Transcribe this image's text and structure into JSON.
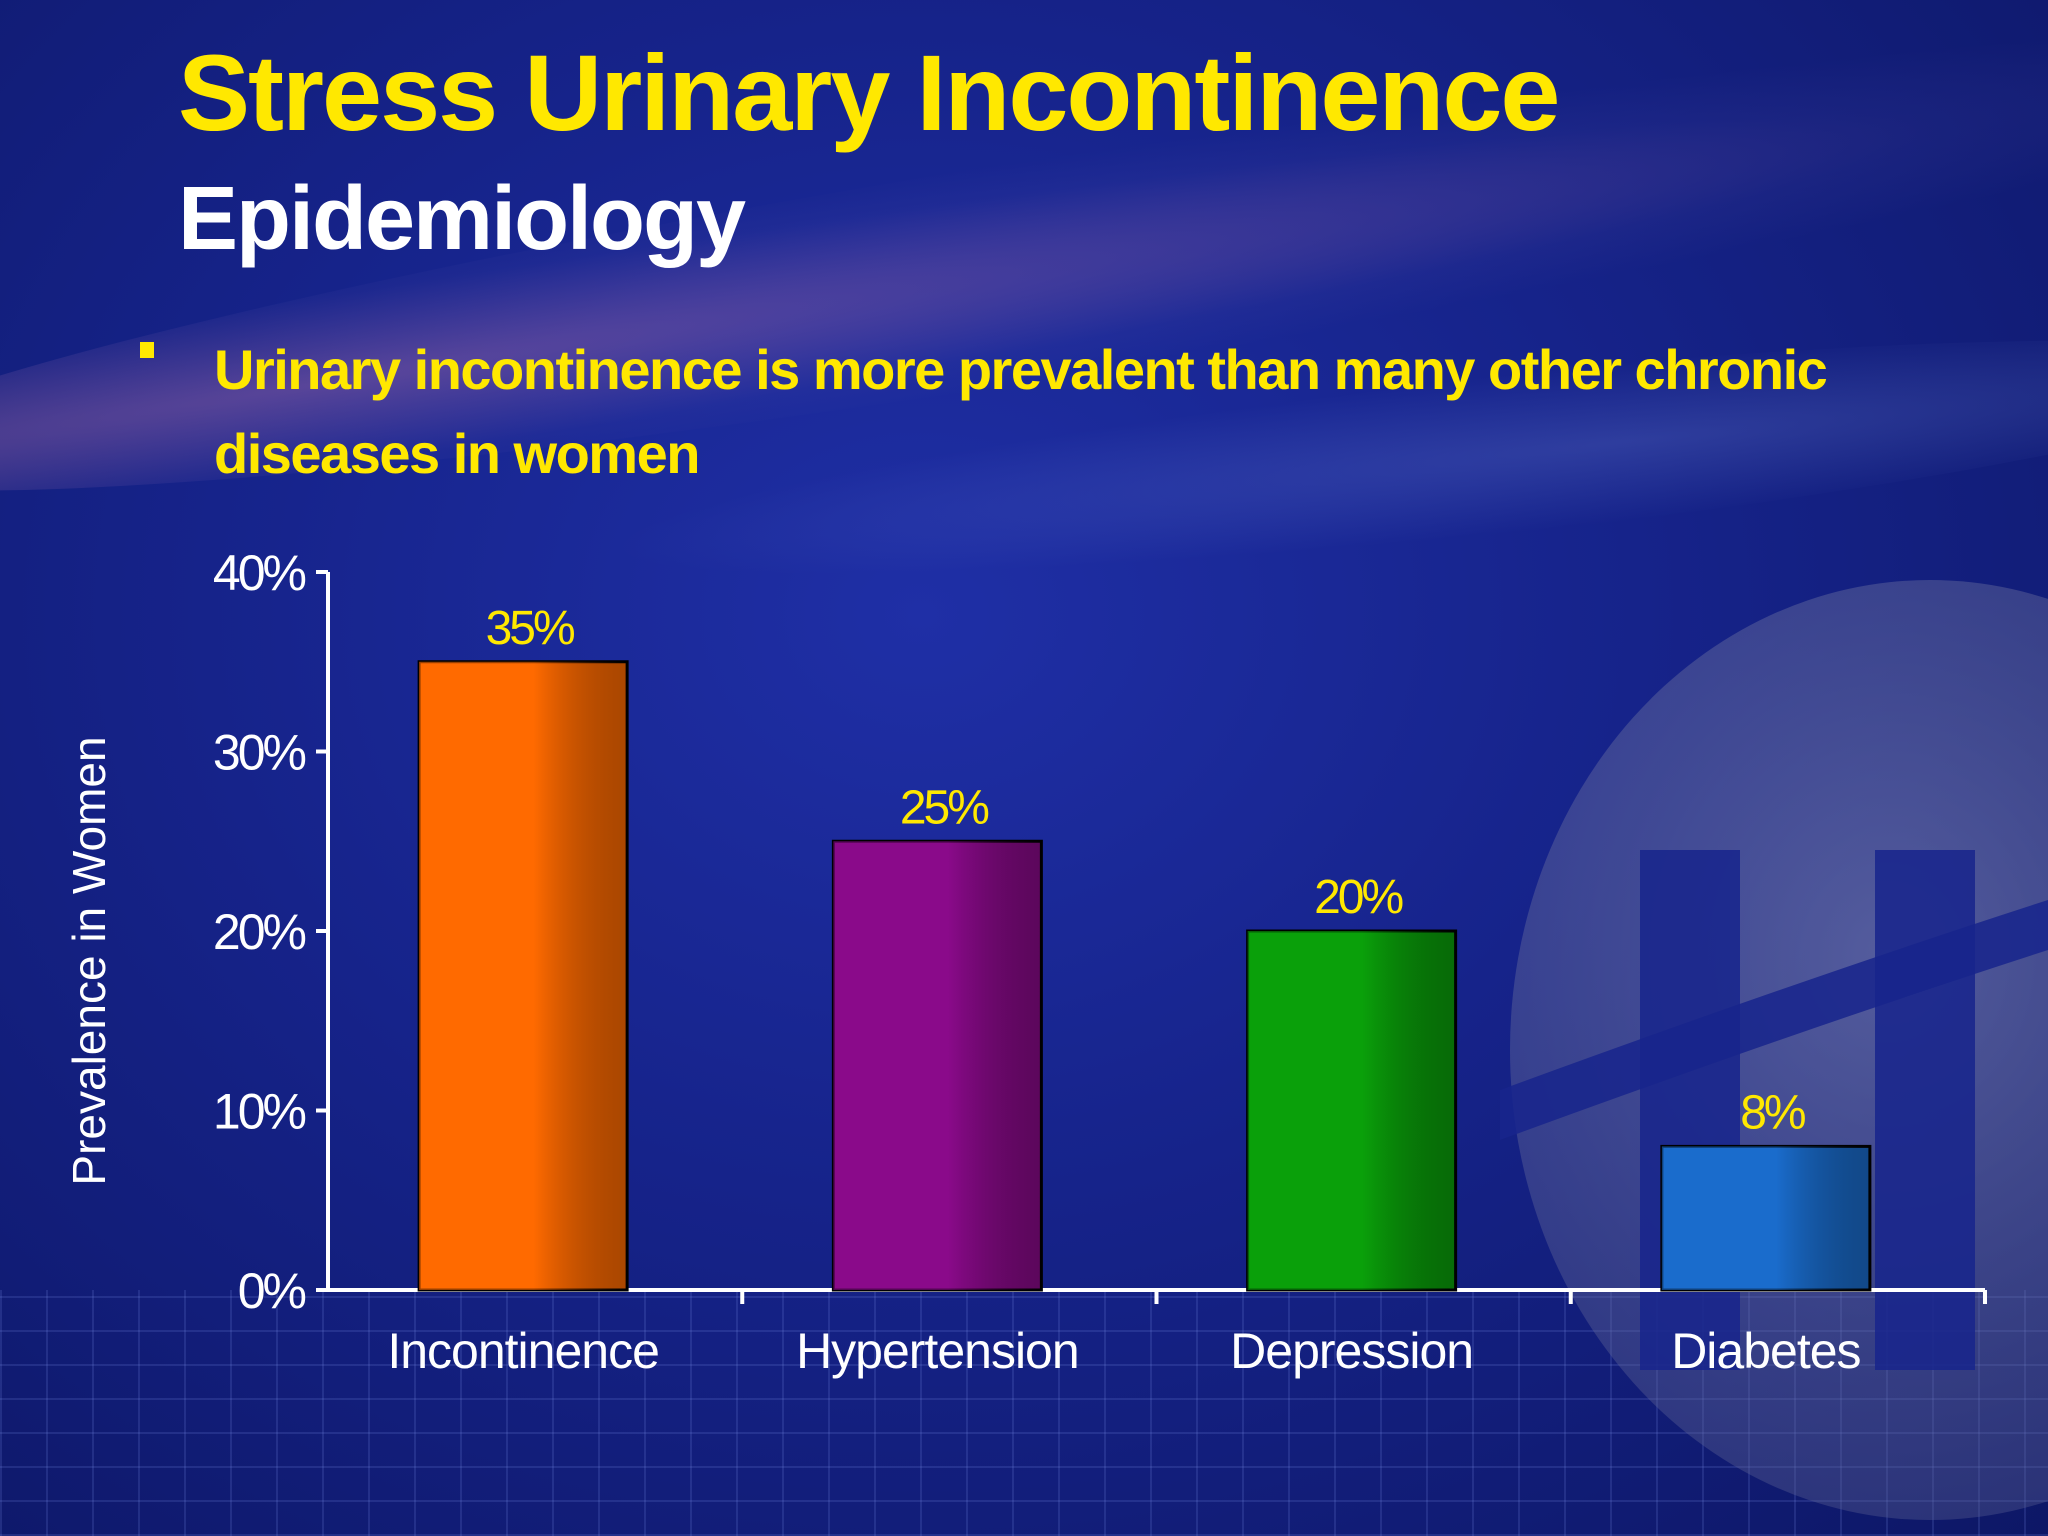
{
  "slide": {
    "title": "Stress Urinary Incontinence",
    "subtitle": "Epidemiology",
    "bullet": "Urinary incontinence is more prevalent than many other chronic diseases in women"
  },
  "colors": {
    "title": "#ffe800",
    "subtitle": "#ffffff",
    "axis": "#ffffff",
    "data_label": "#ffe800"
  },
  "chart_data": {
    "type": "bar",
    "title": "",
    "xlabel": "",
    "ylabel": "Prevalence in Women",
    "categories": [
      "Incontinence",
      "Hypertension",
      "Depression",
      "Diabetes"
    ],
    "values": [
      35,
      25,
      20,
      8
    ],
    "data_labels": [
      "35%",
      "25%",
      "20%",
      "8%"
    ],
    "bar_colors": [
      "#ff6a00",
      "#8a0a8a",
      "#0aa00a",
      "#1a6ccc"
    ],
    "ylim": [
      0,
      40
    ],
    "yticks": [
      0,
      10,
      20,
      30,
      40
    ],
    "ytick_labels": [
      "0%",
      "10%",
      "20%",
      "30%",
      "40%"
    ],
    "grid": false,
    "legend": "none"
  }
}
